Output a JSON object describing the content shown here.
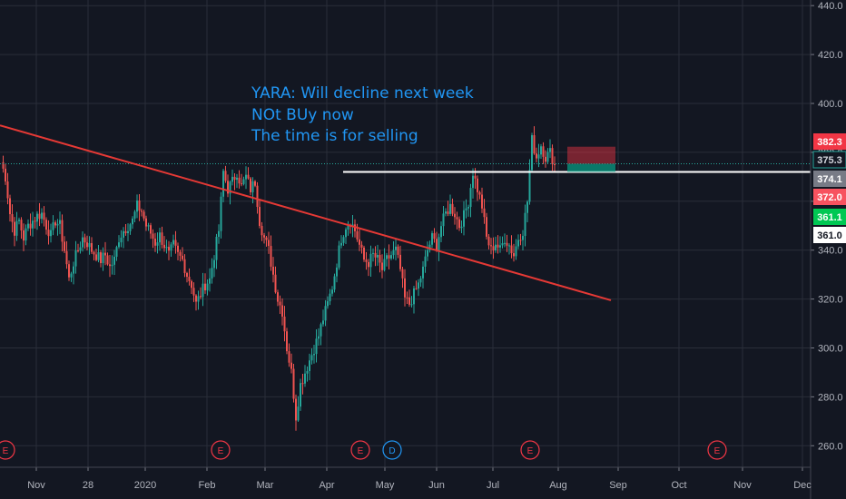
{
  "chart_data": {
    "type": "candlestick",
    "title": "",
    "annotation_lines": [
      "YARA: Will decline next week",
      "NOt BUy now",
      "The time is for selling"
    ],
    "y_axis": {
      "ticks": [
        260,
        280,
        300,
        320,
        340,
        360,
        380,
        400,
        420,
        440
      ],
      "tick_labels": [
        "260.0",
        "280.0",
        "300.0",
        "320.0",
        "340.0",
        "360.0",
        "380.0",
        "400.0",
        "420.0",
        "440.0"
      ],
      "ylim": [
        251.2,
        442.3
      ]
    },
    "x_axis": {
      "tick_labels": [
        "Nov",
        "28",
        "2020",
        "Feb",
        "Mar",
        "Apr",
        "May",
        "Jun",
        "Jul",
        "Aug",
        "Sep",
        "Oct",
        "Nov",
        "Dec"
      ]
    },
    "price_close_series": [
      [
        0,
        376
      ],
      [
        5,
        370
      ],
      [
        10,
        355
      ],
      [
        15,
        348
      ],
      [
        20,
        352
      ],
      [
        25,
        345
      ],
      [
        30,
        350
      ],
      [
        35,
        352
      ],
      [
        40,
        354
      ],
      [
        45,
        355
      ],
      [
        50,
        350
      ],
      [
        55,
        346
      ],
      [
        60,
        352
      ],
      [
        65,
        350
      ],
      [
        70,
        340
      ],
      [
        75,
        328
      ],
      [
        80,
        335
      ],
      [
        85,
        340
      ],
      [
        90,
        345
      ],
      [
        95,
        343
      ],
      [
        100,
        340
      ],
      [
        105,
        338
      ],
      [
        110,
        336
      ],
      [
        115,
        338
      ],
      [
        120,
        333
      ],
      [
        125,
        336
      ],
      [
        130,
        345
      ],
      [
        135,
        348
      ],
      [
        140,
        350
      ],
      [
        145,
        352
      ],
      [
        150,
        358
      ],
      [
        155,
        356
      ],
      [
        160,
        350
      ],
      [
        165,
        347
      ],
      [
        170,
        343
      ],
      [
        175,
        346
      ],
      [
        180,
        342
      ],
      [
        185,
        338
      ],
      [
        190,
        342
      ],
      [
        195,
        338
      ],
      [
        200,
        336
      ],
      [
        205,
        330
      ],
      [
        210,
        326
      ],
      [
        215,
        318
      ],
      [
        220,
        322
      ],
      [
        225,
        326
      ],
      [
        230,
        328
      ],
      [
        235,
        338
      ],
      [
        240,
        348
      ],
      [
        245,
        372
      ],
      [
        250,
        365
      ],
      [
        255,
        368
      ],
      [
        260,
        372
      ],
      [
        265,
        366
      ],
      [
        270,
        370
      ],
      [
        275,
        365
      ],
      [
        280,
        368
      ],
      [
        285,
        352
      ],
      [
        290,
        345
      ],
      [
        295,
        340
      ],
      [
        300,
        330
      ],
      [
        305,
        320
      ],
      [
        310,
        315
      ],
      [
        315,
        300
      ],
      [
        320,
        290
      ],
      [
        325,
        272
      ],
      [
        330,
        285
      ],
      [
        335,
        290
      ],
      [
        340,
        295
      ],
      [
        345,
        300
      ],
      [
        350,
        305
      ],
      [
        355,
        312
      ],
      [
        360,
        318
      ],
      [
        365,
        325
      ],
      [
        370,
        335
      ],
      [
        375,
        345
      ],
      [
        380,
        350
      ],
      [
        385,
        352
      ],
      [
        390,
        348
      ],
      [
        395,
        342
      ],
      [
        400,
        336
      ],
      [
        405,
        335
      ],
      [
        410,
        338
      ],
      [
        415,
        336
      ],
      [
        420,
        332
      ],
      [
        425,
        336
      ],
      [
        430,
        338
      ],
      [
        435,
        340
      ],
      [
        440,
        332
      ],
      [
        445,
        320
      ],
      [
        450,
        318
      ],
      [
        455,
        322
      ],
      [
        460,
        326
      ],
      [
        465,
        332
      ],
      [
        470,
        340
      ],
      [
        475,
        345
      ],
      [
        480,
        342
      ],
      [
        485,
        350
      ],
      [
        490,
        355
      ],
      [
        495,
        358
      ],
      [
        500,
        355
      ],
      [
        505,
        350
      ],
      [
        510,
        354
      ],
      [
        515,
        360
      ],
      [
        520,
        372
      ],
      [
        525,
        365
      ],
      [
        530,
        358
      ],
      [
        535,
        345
      ],
      [
        540,
        340
      ],
      [
        545,
        343
      ],
      [
        550,
        340
      ],
      [
        555,
        345
      ],
      [
        560,
        342
      ],
      [
        565,
        338
      ],
      [
        570,
        345
      ],
      [
        575,
        348
      ],
      [
        580,
        360
      ],
      [
        585,
        385
      ],
      [
        590,
        378
      ],
      [
        595,
        383
      ],
      [
        600,
        378
      ],
      [
        605,
        380
      ],
      [
        610,
        375
      ]
    ],
    "trendline": {
      "from": [
        0,
        391
      ],
      "to": [
        673,
        319.5
      ],
      "color": "#e53935"
    },
    "support_line": {
      "value": 372.0,
      "from_x": 378,
      "color": "#ffffff"
    },
    "last_price_line": {
      "value": 375.3,
      "color": "#26a69a"
    },
    "risk_reward": {
      "entry": 375.3,
      "stop": 382.3,
      "target": 372.0,
      "stop_color": "#f23645",
      "target_color": "#089981"
    },
    "price_tags": [
      {
        "label": "382.3",
        "value": 382.3,
        "bg": "#f23645",
        "fg": "#ffffff"
      },
      {
        "label": "375.3",
        "value": 375.3,
        "bg": "#131722",
        "fg": "#d1d4dc"
      },
      {
        "label": "374.1",
        "value": 374.1,
        "bg": "#787b86",
        "fg": "#ffffff"
      },
      {
        "label": "372.0",
        "value": 372.0,
        "bg": "#f7525f",
        "fg": "#ffffff"
      },
      {
        "label": "361.1",
        "value": 361.1,
        "bg": "#00c853",
        "fg": "#ffffff"
      },
      {
        "label": "361.0",
        "value": 361.0,
        "bg": "#ffffff",
        "fg": "#131722"
      }
    ],
    "event_markers": [
      {
        "label": "E",
        "color": "#f23645"
      },
      {
        "label": "E",
        "color": "#f23645"
      },
      {
        "label": "E",
        "color": "#f23645"
      },
      {
        "label": "D",
        "color": "#2196f3"
      },
      {
        "label": "E",
        "color": "#f23645"
      },
      {
        "label": "E",
        "color": "#f23645"
      }
    ],
    "colors": {
      "background": "#131722",
      "up": "#26a69a",
      "down": "#ef5350",
      "grid": "#2a2e39",
      "axis_text": "#b2b5be",
      "annotation": "#2196f3"
    }
  }
}
